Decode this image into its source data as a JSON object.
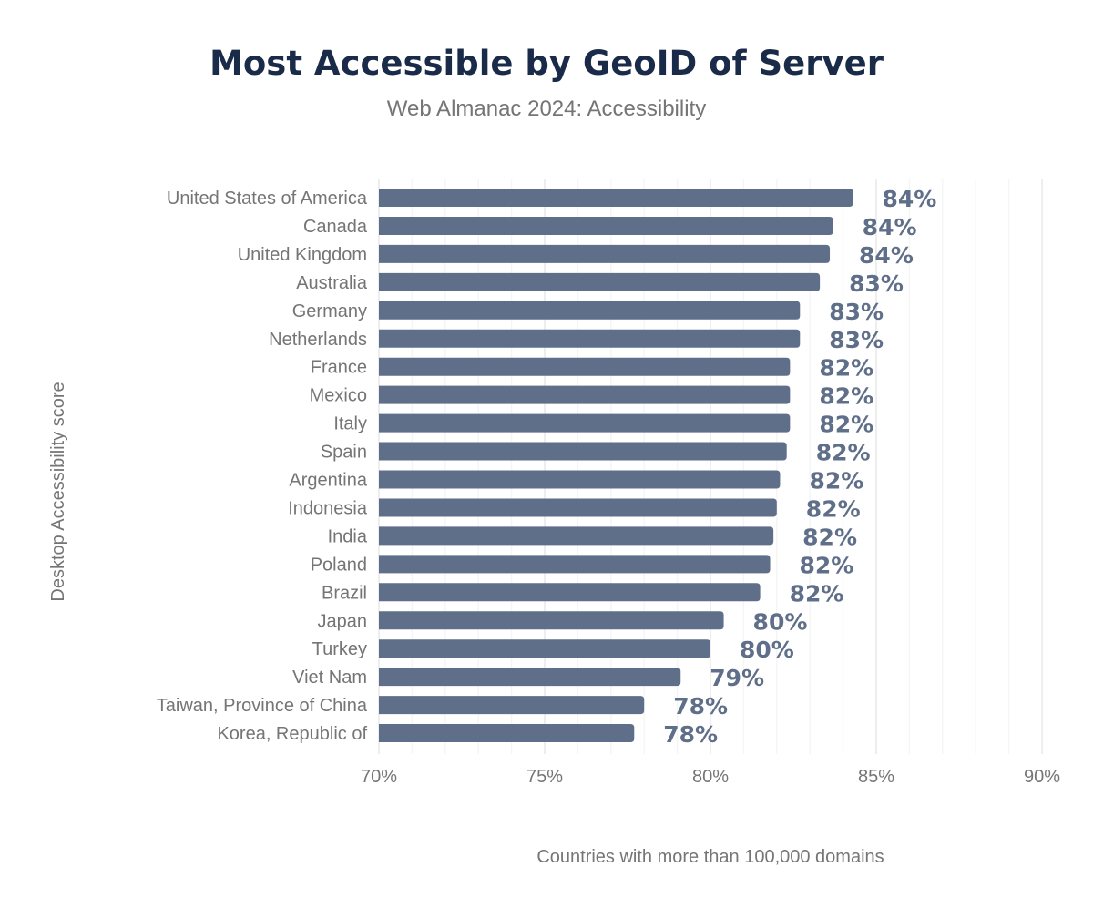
{
  "chart_data": {
    "type": "bar",
    "orientation": "horizontal",
    "title": "Most Accessible by GeoID of Server",
    "subtitle": "Web Almanac 2024: Accessibility",
    "ylabel": "Desktop Accessibility score",
    "xlabel": "Countries with more than 100,000 domains",
    "categories": [
      "United States of America",
      "Canada",
      "United Kingdom",
      "Australia",
      "Germany",
      "Netherlands",
      "France",
      "Mexico",
      "Italy",
      "Spain",
      "Argentina",
      "Indonesia",
      "India",
      "Poland",
      "Brazil",
      "Japan",
      "Turkey",
      "Viet Nam",
      "Taiwan, Province of China",
      "Korea, Republic of"
    ],
    "values": [
      84.3,
      83.7,
      83.6,
      83.3,
      82.7,
      82.7,
      82.4,
      82.4,
      82.4,
      82.3,
      82.1,
      82.0,
      81.9,
      81.8,
      81.5,
      80.4,
      80.0,
      79.1,
      78.0,
      77.7
    ],
    "data_labels": [
      "84%",
      "84%",
      "84%",
      "83%",
      "83%",
      "83%",
      "82%",
      "82%",
      "82%",
      "82%",
      "82%",
      "82%",
      "82%",
      "82%",
      "82%",
      "80%",
      "80%",
      "79%",
      "78%",
      "78%"
    ],
    "xlim": [
      70,
      90
    ],
    "ticks": [
      70,
      75,
      80,
      85,
      90
    ],
    "tick_labels": [
      "70%",
      "75%",
      "80%",
      "85%",
      "90%"
    ],
    "grid": true,
    "bar_color": "#5f6f89",
    "title_color": "#1a2b49"
  }
}
